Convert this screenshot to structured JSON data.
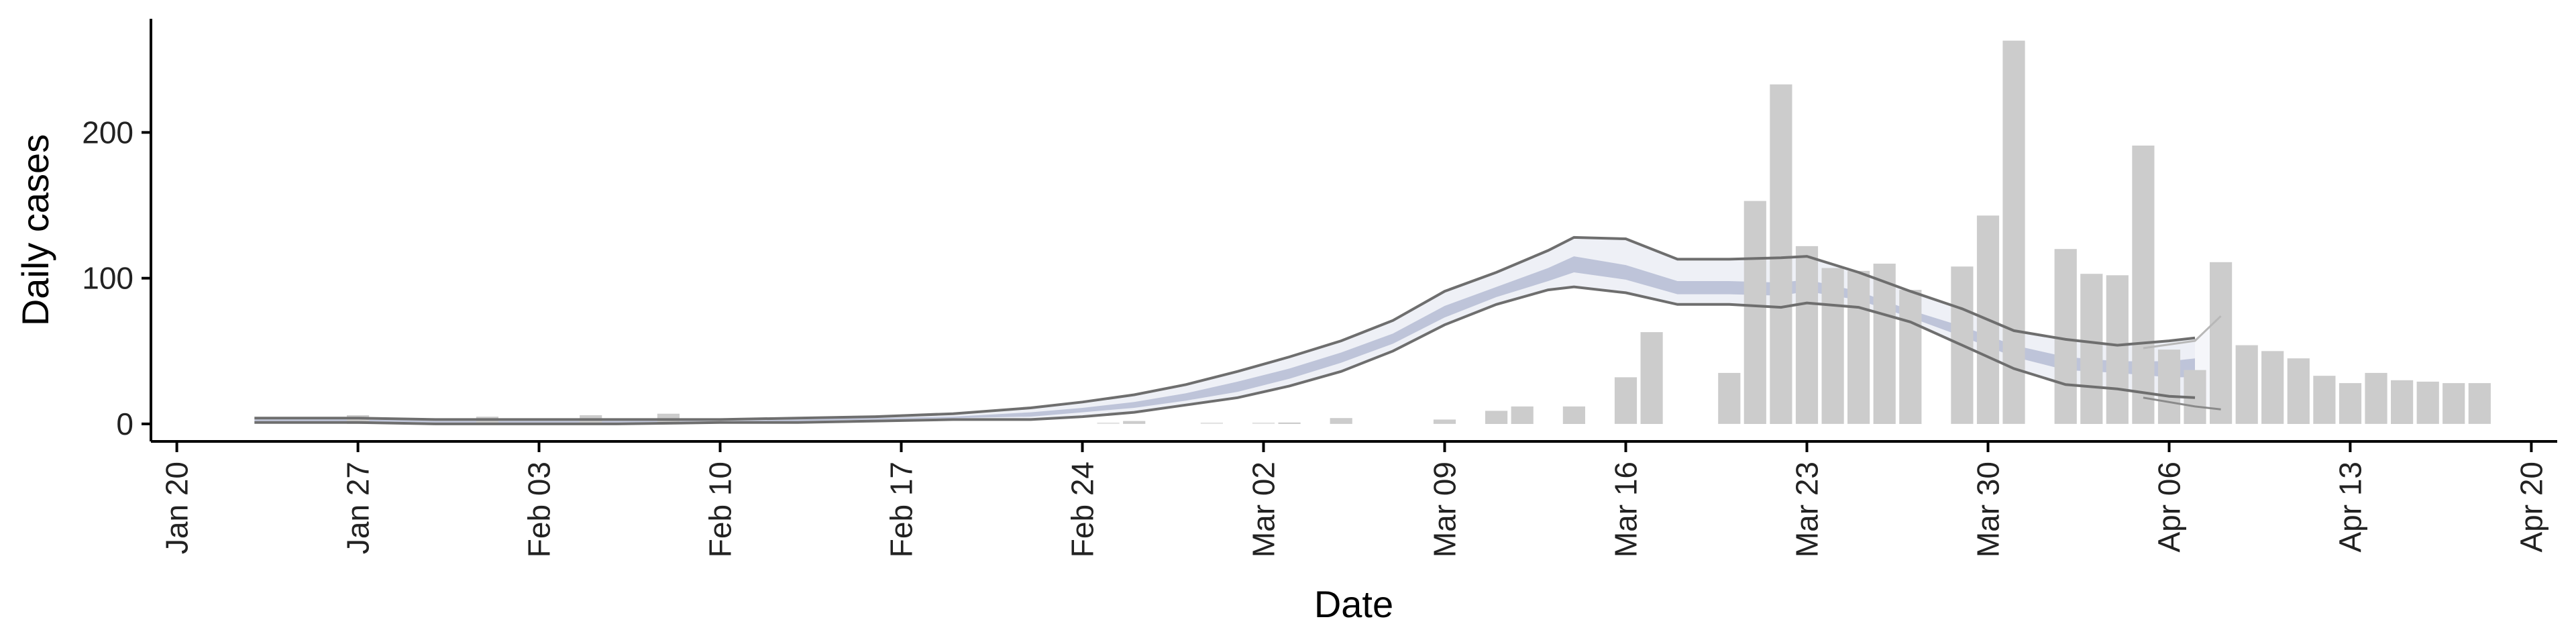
{
  "chart_data": {
    "type": "bar",
    "xlabel": "Date",
    "ylabel": "Daily cases",
    "x_ticks": [
      "Jan 20",
      "Jan 27",
      "Feb 03",
      "Feb 10",
      "Feb 17",
      "Feb 24",
      "Mar 02",
      "Mar 09",
      "Mar 16",
      "Mar 23",
      "Mar 30",
      "Apr 06",
      "Apr 13",
      "Apr 20"
    ],
    "y_ticks": [
      0,
      100,
      200
    ],
    "xlim": [
      "2020-01-19",
      "2020-04-21"
    ],
    "ylim": [
      -12,
      278
    ],
    "grid": false,
    "legend": "none",
    "colors": {
      "bars": "#cccccc",
      "bars_faint": "#e3e3e3",
      "band_outer": "#eceef5",
      "band_inner": "#b5bcd3",
      "band_edge": "#6e6e6e"
    },
    "bars": {
      "dates": [
        "2020-01-27",
        "2020-02-01",
        "2020-02-05",
        "2020-02-08",
        "2020-02-26",
        "2020-03-03",
        "2020-03-05",
        "2020-03-09",
        "2020-03-11",
        "2020-03-12",
        "2020-03-14",
        "2020-03-16",
        "2020-03-17",
        "2020-03-20",
        "2020-03-21",
        "2020-03-22",
        "2020-03-23",
        "2020-03-24",
        "2020-03-25",
        "2020-03-26",
        "2020-03-27",
        "2020-03-29",
        "2020-03-30",
        "2020-03-31",
        "2020-04-02",
        "2020-04-03",
        "2020-04-04",
        "2020-04-05",
        "2020-04-06",
        "2020-04-07",
        "2020-04-08",
        "2020-04-09",
        "2020-04-10",
        "2020-04-11",
        "2020-04-12",
        "2020-04-13",
        "2020-04-14",
        "2020-04-15",
        "2020-04-16",
        "2020-04-17",
        "2020-04-18"
      ],
      "values": [
        6,
        5,
        6,
        7,
        2,
        1,
        4,
        3,
        9,
        12,
        12,
        32,
        63,
        35,
        153,
        233,
        122,
        107,
        105,
        110,
        92,
        108,
        143,
        263,
        120,
        103,
        102,
        191,
        51,
        37,
        111,
        54,
        50,
        45,
        33,
        28,
        35,
        30,
        29,
        28,
        28
      ]
    },
    "bars_faint": {
      "dates": [
        "2020-02-25",
        "2020-02-29",
        "2020-03-02"
      ],
      "values": [
        1,
        1,
        1
      ]
    },
    "estimate": {
      "dates": [
        "2020-01-23",
        "2020-01-27",
        "2020-01-30",
        "2020-02-02",
        "2020-02-06",
        "2020-02-10",
        "2020-02-13",
        "2020-02-16",
        "2020-02-19",
        "2020-02-22",
        "2020-02-24",
        "2020-02-26",
        "2020-02-28",
        "2020-03-01",
        "2020-03-03",
        "2020-03-05",
        "2020-03-07",
        "2020-03-09",
        "2020-03-11",
        "2020-03-13",
        "2020-03-14",
        "2020-03-16",
        "2020-03-18",
        "2020-03-20",
        "2020-03-22",
        "2020-03-23",
        "2020-03-25",
        "2020-03-27",
        "2020-03-29",
        "2020-03-31",
        "2020-04-02",
        "2020-04-04",
        "2020-04-06",
        "2020-04-07"
      ],
      "outer_upper": [
        4,
        4,
        3,
        3,
        3,
        3,
        4,
        5,
        7,
        11,
        15,
        20,
        27,
        36,
        46,
        57,
        71,
        91,
        104,
        119,
        128,
        127,
        113,
        113,
        114,
        115,
        104,
        91,
        79,
        64,
        58,
        54,
        57,
        59
      ],
      "outer_lower": [
        1,
        1,
        0,
        0,
        0,
        1,
        1,
        2,
        3,
        3,
        5,
        8,
        13,
        18,
        26,
        36,
        50,
        68,
        82,
        92,
        94,
        90,
        82,
        82,
        80,
        83,
        80,
        70,
        54,
        38,
        27,
        24,
        19,
        18
      ],
      "inner_upper": [
        3,
        3,
        2,
        2,
        2,
        2,
        3,
        4,
        5,
        8,
        11,
        15,
        21,
        29,
        38,
        49,
        62,
        81,
        94,
        107,
        115,
        109,
        98,
        98,
        97,
        99,
        91,
        78,
        67,
        54,
        46,
        43,
        43,
        45
      ],
      "inner_lower": [
        2,
        2,
        1,
        1,
        1,
        2,
        2,
        3,
        4,
        5,
        8,
        11,
        16,
        22,
        31,
        42,
        55,
        73,
        87,
        98,
        104,
        99,
        89,
        89,
        88,
        91,
        85,
        73,
        60,
        46,
        37,
        35,
        32,
        32
      ],
      "projection_upper": [
        52,
        57,
        74
      ],
      "projection_lower": [
        18,
        12,
        10
      ],
      "projection_dates": [
        "2020-04-05",
        "2020-04-07",
        "2020-04-08"
      ]
    }
  }
}
